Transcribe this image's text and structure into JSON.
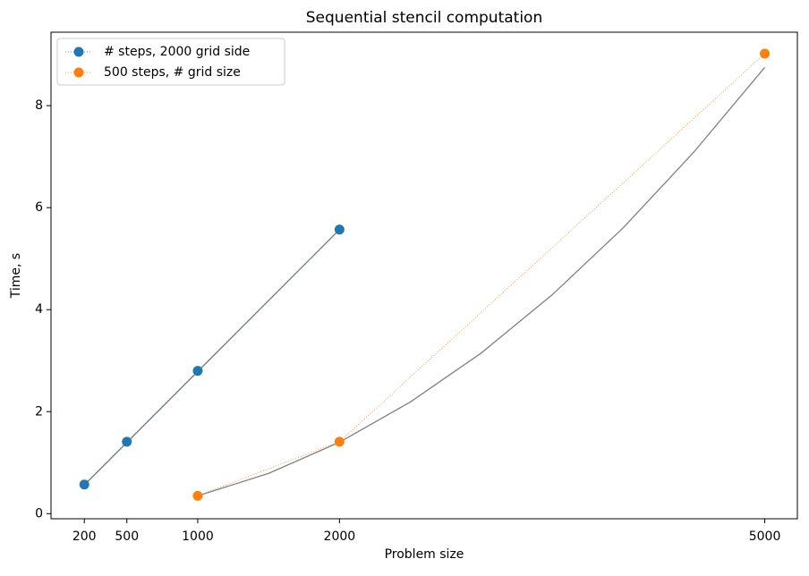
{
  "chart_data": {
    "type": "line",
    "title": "Sequential stencil computation",
    "xlabel": "Problem size",
    "ylabel": "Time, s",
    "xlim": [
      -35,
      5230
    ],
    "ylim": [
      -0.1,
      9.44
    ],
    "xticks": [
      200,
      500,
      1000,
      2000,
      5000
    ],
    "yticks": [
      0,
      2,
      4,
      6,
      8
    ],
    "legend": "upper left",
    "grid": false,
    "series": [
      {
        "name": "# steps, 2000 grid side",
        "color": "#1f77b4",
        "x": [
          200,
          500,
          1000,
          2000
        ],
        "values": [
          0.57,
          1.41,
          2.8,
          5.57
        ]
      },
      {
        "name": "500 steps, # grid size",
        "color": "#ff7f0e",
        "x": [
          1000,
          2000,
          5000
        ],
        "values": [
          0.35,
          1.41,
          9.02
        ]
      }
    ],
    "fits": [
      {
        "color": "#808080",
        "x": [
          200,
          2000
        ],
        "values": [
          0.56,
          5.57
        ]
      },
      {
        "color": "#808080",
        "x": [
          1000,
          1500,
          2000,
          2500,
          3000,
          3500,
          4000,
          4500,
          5000
        ],
        "values": [
          0.35,
          0.79,
          1.4,
          2.19,
          3.15,
          4.29,
          5.6,
          7.09,
          8.75
        ]
      }
    ]
  }
}
